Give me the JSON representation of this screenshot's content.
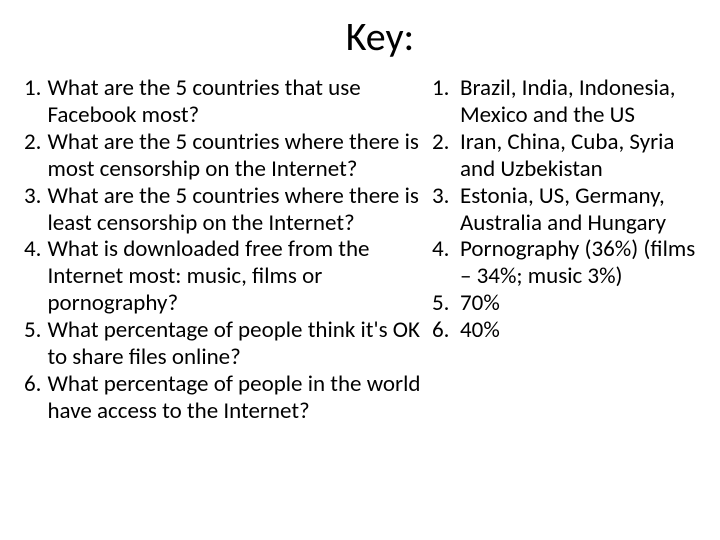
{
  "title": "Key:",
  "text_color": "#000000",
  "background_color": "#ffffff",
  "title_fontsize": 40,
  "body_fontsize": 23,
  "questions": [
    {
      "num": "1.",
      "text": "What are the 5 countries that use Facebook most?"
    },
    {
      "num": "2.",
      "text": "What are the 5 countries where there is most censorship on the Internet?"
    },
    {
      "num": "3.",
      "text": "What are the 5 countries where there is least censorship on the Internet?"
    },
    {
      "num": "4.",
      "text": "What is downloaded free from the Internet most: music, films or pornography?"
    },
    {
      "num": "5.",
      "text": "What percentage of people think it's OK to share files online?"
    },
    {
      "num": "6.",
      "text": "What percentage of people in the world have access to the Internet?"
    }
  ],
  "answers": [
    {
      "num": "1.",
      "text": "Brazil, India, Indonesia, Mexico and the US"
    },
    {
      "num": "2.",
      "text": "Iran, China, Cuba, Syria and Uzbekistan"
    },
    {
      "num": "3.",
      "text": "Estonia, US, Germany, Australia and Hungary"
    },
    {
      "num": "4.",
      "text": "Pornography (36%) (films – 34%; music 3%)"
    },
    {
      "num": "5.",
      "text": "70%"
    },
    {
      "num": "6.",
      "text": "40%"
    }
  ]
}
